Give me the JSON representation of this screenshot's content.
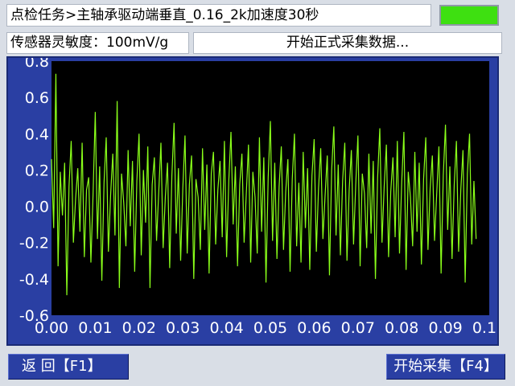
{
  "header": {
    "task_title": "点检任务>主轴承驱动端垂直_0.16_2k加速度30秒",
    "status_color": "#3ee011"
  },
  "info": {
    "sensor_sensitivity": "传感器灵敏度：100mV/g",
    "status_message": "开始正式采集数据..."
  },
  "chart_data": {
    "type": "line",
    "title": "",
    "xlabel": "",
    "ylabel": "",
    "xlim": [
      0.0,
      0.1
    ],
    "ylim": [
      -0.6,
      0.8
    ],
    "x_ticks": [
      "0.00",
      "0.01",
      "0.02",
      "0.03",
      "0.04",
      "0.05",
      "0.06",
      "0.07",
      "0.08",
      "0.09",
      "0.10"
    ],
    "y_ticks": [
      "0.8",
      "0.6",
      "0.4",
      "0.2",
      "0.0",
      "-0.2",
      "-0.4",
      "-0.6"
    ],
    "grid": false,
    "background": "#000000",
    "series": [
      {
        "color": "#8aff1a",
        "sample_interval": 0.0005,
        "values": [
          0.26,
          -0.12,
          0.73,
          -0.33,
          0.19,
          -0.05,
          0.24,
          -0.49,
          0.11,
          0.36,
          -0.2,
          0.04,
          0.21,
          -0.14,
          0.35,
          -0.28,
          0.09,
          0.16,
          -0.31,
          0.07,
          0.52,
          -0.18,
          0.22,
          -0.41,
          0.13,
          0.38,
          -0.25,
          0.06,
          0.29,
          -0.16,
          0.58,
          -0.45,
          0.18,
          0.02,
          -0.22,
          0.31,
          -0.11,
          0.25,
          -0.36,
          0.14,
          0.4,
          -0.27,
          0.2,
          -0.09,
          0.33,
          -0.45,
          0.12,
          0.27,
          -0.19,
          0.08,
          0.35,
          -0.23,
          0.05,
          0.24,
          -0.34,
          0.17,
          0.46,
          -0.15,
          0.21,
          -0.3,
          0.1,
          0.39,
          -0.26,
          0.12,
          0.28,
          -0.4,
          0.15,
          0.05,
          -0.24,
          0.32,
          -0.13,
          0.23,
          -0.37,
          0.18,
          0.3,
          -0.21,
          0.09,
          0.25,
          -0.17,
          0.36,
          -0.28,
          0.14,
          0.41,
          -0.1,
          0.22,
          -0.33,
          0.12,
          0.29,
          -0.2,
          0.07,
          0.34,
          -0.31,
          0.19,
          0.05,
          -0.26,
          0.38,
          -0.14,
          0.27,
          -0.42,
          0.16,
          0.47,
          -0.19,
          0.24,
          -0.29,
          0.11,
          0.33,
          -0.24,
          0.08,
          0.26,
          -0.36,
          0.15,
          0.4,
          -0.22,
          0.13,
          -0.31,
          0.3,
          -0.12,
          0.21,
          -0.35,
          0.17,
          0.37,
          -0.25,
          0.1,
          0.32,
          -0.18,
          0.06,
          0.28,
          -0.38,
          0.2,
          0.44,
          -0.16,
          0.23,
          -0.27,
          0.14,
          0.35,
          -0.3,
          0.09,
          0.31,
          -0.21,
          0.12,
          0.39,
          -0.33,
          0.18,
          0.07,
          -0.23,
          0.29,
          -0.15,
          0.25,
          -0.4,
          0.16,
          0.43,
          -0.2,
          0.11,
          0.34,
          -0.28,
          0.08,
          0.27,
          -0.17,
          0.36,
          -0.26,
          0.13,
          0.41,
          -0.35,
          0.19,
          0.05,
          -0.22,
          0.3,
          -0.14,
          0.24,
          -0.32,
          0.15,
          0.38,
          -0.24,
          0.1,
          0.28,
          -0.19,
          0.07,
          0.33,
          -0.37,
          0.17,
          0.45,
          -0.13,
          0.22,
          -0.29,
          0.12,
          0.36,
          -0.25,
          0.09,
          0.31,
          -0.42,
          0.18,
          0.4,
          -0.21,
          0.14,
          -0.18
        ]
      }
    ]
  },
  "buttons": {
    "back_label": "返  回【F1】",
    "start_label": "开始采集【F4】"
  }
}
